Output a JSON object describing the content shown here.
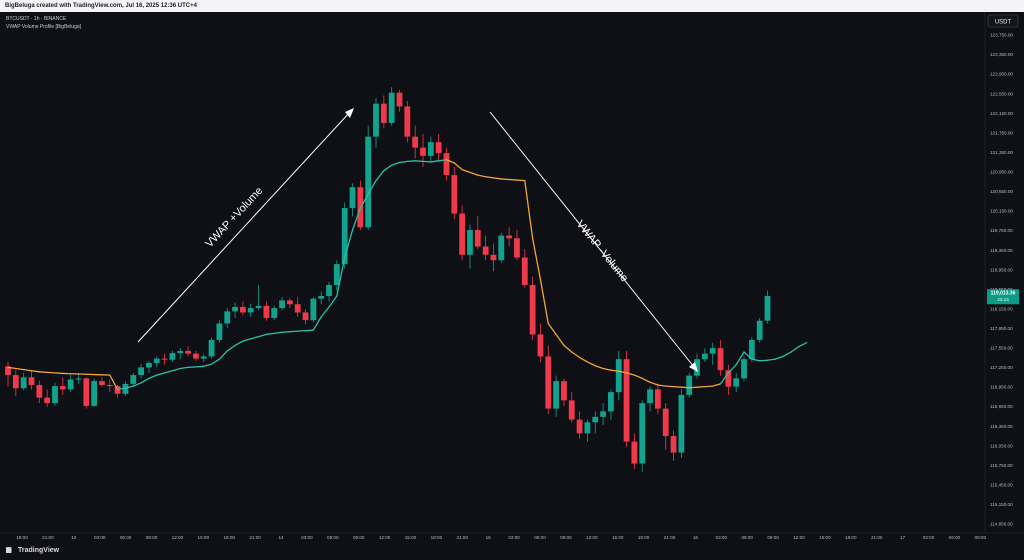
{
  "header": {
    "attribution": "BigBeluga created with TradingView.com, Jul 16, 2025 12:36 UTC+4"
  },
  "legend": {
    "symbol_line": "BTCUSDT · 1h · BINANCE",
    "indicator_line": "VWAP Volume Profile [BigBeluga]"
  },
  "footer": {
    "brand": "TradingView"
  },
  "price_badge": {
    "price": "119,013.36",
    "countdown": "23:24",
    "color": "#0b9c86"
  },
  "currency_button": "USDT",
  "annotations": {
    "up": "VWAP +Volume",
    "down": "VWAP -Volume"
  },
  "colors": {
    "up": "#12a38e",
    "down": "#ee3a4a",
    "vwap_up": "#2bc1a8",
    "vwap_down": "#f0a43b",
    "background": "#0f1016",
    "arrow": "#ffffff"
  },
  "chart_data": {
    "type": "candlestick",
    "symbol": "BTCUSDT",
    "interval": "1h",
    "exchange": "BINANCE",
    "currency": "USDT",
    "last_price": 119013.36,
    "y_ticks": [
      "123,750.00",
      "123,350.00",
      "122,950.00",
      "122,550.00",
      "122,150.00",
      "121,750.00",
      "121,350.00",
      "120,950.00",
      "120,550.00",
      "120,150.00",
      "119,750.00",
      "119,350.00",
      "118,950.00",
      "118,550.00",
      "118,150.00",
      "117,850.00",
      "117,550.00",
      "117,250.00",
      "116,950.00",
      "116,650.00",
      "116,350.00",
      "116,050.00",
      "115,750.00",
      "115,450.00",
      "115,150.00",
      "114,850.00"
    ],
    "x_ticks": [
      "18:00",
      "21:00",
      "13",
      "03:00",
      "06:00",
      "09:00",
      "12:00",
      "15:00",
      "18:00",
      "21:00",
      "14",
      "03:00",
      "06:00",
      "09:00",
      "12:00",
      "15:00",
      "18:00",
      "21:00",
      "15",
      "03:00",
      "06:00",
      "09:00",
      "12:00",
      "15:00",
      "18:00",
      "21:00",
      "16",
      "03:00",
      "06:00",
      "09:00",
      "12:00",
      "15:00",
      "18:00",
      "21:00",
      "17",
      "03:00",
      "06:00",
      "09:00"
    ],
    "candles": [
      [
        117720,
        117800,
        117350,
        117560
      ],
      [
        117560,
        117650,
        117180,
        117320
      ],
      [
        117320,
        117600,
        117280,
        117520
      ],
      [
        117520,
        117640,
        117300,
        117380
      ],
      [
        117380,
        117460,
        117050,
        117150
      ],
      [
        117150,
        117300,
        116980,
        117050
      ],
      [
        117050,
        117420,
        117000,
        117360
      ],
      [
        117360,
        117520,
        117200,
        117300
      ],
      [
        117300,
        117560,
        117250,
        117480
      ],
      [
        117480,
        117580,
        117400,
        117500
      ],
      [
        117500,
        117520,
        116950,
        117000
      ],
      [
        117000,
        117500,
        116980,
        117450
      ],
      [
        117450,
        117520,
        117350,
        117380
      ],
      [
        117380,
        117480,
        117250,
        117360
      ],
      [
        117360,
        117380,
        117150,
        117220
      ],
      [
        117220,
        117450,
        117180,
        117400
      ],
      [
        117400,
        117600,
        117350,
        117560
      ],
      [
        117560,
        117760,
        117500,
        117700
      ],
      [
        117700,
        117820,
        117600,
        117780
      ],
      [
        117780,
        117900,
        117700,
        117860
      ],
      [
        117860,
        117950,
        117750,
        117840
      ],
      [
        117840,
        118000,
        117800,
        117960
      ],
      [
        117960,
        118050,
        117850,
        118000
      ],
      [
        118000,
        118080,
        117900,
        117950
      ],
      [
        117950,
        118000,
        117820,
        117860
      ],
      [
        117860,
        117950,
        117800,
        117900
      ],
      [
        117900,
        118250,
        117860,
        118200
      ],
      [
        118200,
        118560,
        118150,
        118500
      ],
      [
        118500,
        118780,
        118420,
        118720
      ],
      [
        118720,
        118880,
        118600,
        118800
      ],
      [
        118800,
        118900,
        118650,
        118700
      ],
      [
        118700,
        118860,
        118620,
        118780
      ],
      [
        118780,
        119200,
        118740,
        118820
      ],
      [
        118820,
        118900,
        118550,
        118600
      ],
      [
        118600,
        118820,
        118560,
        118780
      ],
      [
        118780,
        118980,
        118740,
        118920
      ],
      [
        118920,
        118960,
        118780,
        118850
      ],
      [
        118850,
        118980,
        118620,
        118700
      ],
      [
        118700,
        118760,
        118480,
        118560
      ],
      [
        118560,
        118980,
        118520,
        118950
      ],
      [
        118950,
        119080,
        118850,
        119000
      ],
      [
        119000,
        119260,
        118900,
        119200
      ],
      [
        119200,
        119650,
        119100,
        119580
      ],
      [
        119580,
        120700,
        119500,
        120600
      ],
      [
        120600,
        121050,
        120450,
        120980
      ],
      [
        120980,
        121100,
        120200,
        120250
      ],
      [
        120250,
        122100,
        120200,
        121900
      ],
      [
        121900,
        122600,
        121700,
        122500
      ],
      [
        122500,
        122650,
        122050,
        122150
      ],
      [
        122150,
        122800,
        122100,
        122700
      ],
      [
        122700,
        122750,
        122350,
        122450
      ],
      [
        122450,
        122550,
        121800,
        121900
      ],
      [
        121900,
        122100,
        121500,
        121700
      ],
      [
        121700,
        121950,
        121350,
        121550
      ],
      [
        121550,
        121900,
        121450,
        121800
      ],
      [
        121800,
        121950,
        121450,
        121600
      ],
      [
        121600,
        121700,
        121100,
        121200
      ],
      [
        121200,
        121350,
        120400,
        120500
      ],
      [
        120500,
        120650,
        119650,
        119750
      ],
      [
        119750,
        120300,
        119500,
        120200
      ],
      [
        120200,
        120450,
        119850,
        119900
      ],
      [
        119900,
        120100,
        119650,
        119750
      ],
      [
        119750,
        119950,
        119450,
        119650
      ],
      [
        119650,
        120150,
        119600,
        120100
      ],
      [
        120100,
        120250,
        119900,
        120050
      ],
      [
        120050,
        120200,
        119650,
        119700
      ],
      [
        119700,
        119850,
        119150,
        119200
      ],
      [
        119200,
        119350,
        118200,
        118300
      ],
      [
        118300,
        118500,
        117800,
        117900
      ],
      [
        117900,
        118100,
        116850,
        116950
      ],
      [
        116950,
        117550,
        116800,
        117450
      ],
      [
        117450,
        117500,
        117000,
        117100
      ],
      [
        117100,
        117250,
        116700,
        116750
      ],
      [
        116750,
        116900,
        116400,
        116500
      ],
      [
        116500,
        116750,
        116350,
        116700
      ],
      [
        116700,
        116900,
        116500,
        116800
      ],
      [
        116800,
        117050,
        116650,
        116900
      ],
      [
        116900,
        117300,
        116750,
        117250
      ],
      [
        117250,
        118000,
        117100,
        117850
      ],
      [
        117850,
        118000,
        116250,
        116350
      ],
      [
        116350,
        116500,
        115850,
        115950
      ],
      [
        115950,
        117100,
        115800,
        117050
      ],
      [
        117050,
        117350,
        116900,
        117300
      ],
      [
        117300,
        117400,
        116850,
        116950
      ],
      [
        116950,
        117050,
        116200,
        116450
      ],
      [
        116450,
        116550,
        116000,
        116150
      ],
      [
        116150,
        117300,
        116050,
        117200
      ],
      [
        117200,
        117600,
        117150,
        117550
      ],
      [
        117550,
        117950,
        117500,
        117850
      ],
      [
        117850,
        118050,
        117800,
        117950
      ],
      [
        117950,
        118150,
        117750,
        118050
      ],
      [
        118050,
        118200,
        117550,
        117650
      ],
      [
        117650,
        117750,
        117200,
        117350
      ],
      [
        117350,
        117600,
        117250,
        117500
      ],
      [
        117500,
        117900,
        117450,
        117850
      ],
      [
        117850,
        118250,
        117800,
        118200
      ],
      [
        118200,
        118600,
        118150,
        118550
      ],
      [
        118550,
        119100,
        118500,
        119000
      ]
    ],
    "vwap": [
      [
        117700,
        "down"
      ],
      [
        117680,
        "down"
      ],
      [
        117660,
        "down"
      ],
      [
        117640,
        "down"
      ],
      [
        117620,
        "down"
      ],
      [
        117610,
        "down"
      ],
      [
        117600,
        "down"
      ],
      [
        117590,
        "down"
      ],
      [
        117585,
        "down"
      ],
      [
        117580,
        "down"
      ],
      [
        117575,
        "down"
      ],
      [
        117570,
        "down"
      ],
      [
        117565,
        "down"
      ],
      [
        117560,
        "down"
      ],
      [
        117300,
        "down"
      ],
      [
        117320,
        "up"
      ],
      [
        117360,
        "up"
      ],
      [
        117420,
        "up"
      ],
      [
        117500,
        "up"
      ],
      [
        117560,
        "up"
      ],
      [
        117600,
        "up"
      ],
      [
        117640,
        "up"
      ],
      [
        117680,
        "up"
      ],
      [
        117700,
        "up"
      ],
      [
        117710,
        "up"
      ],
      [
        117720,
        "up"
      ],
      [
        117760,
        "up"
      ],
      [
        117850,
        "up"
      ],
      [
        118000,
        "up"
      ],
      [
        118100,
        "up"
      ],
      [
        118180,
        "up"
      ],
      [
        118220,
        "up"
      ],
      [
        118260,
        "up"
      ],
      [
        118300,
        "up"
      ],
      [
        118320,
        "up"
      ],
      [
        118340,
        "up"
      ],
      [
        118350,
        "up"
      ],
      [
        118360,
        "up"
      ],
      [
        118370,
        "up"
      ],
      [
        118380,
        "up"
      ],
      [
        118620,
        "up"
      ],
      [
        118800,
        "up"
      ],
      [
        119000,
        "up"
      ],
      [
        119700,
        "up"
      ],
      [
        120200,
        "up"
      ],
      [
        120600,
        "up"
      ],
      [
        120850,
        "up"
      ],
      [
        121100,
        "up"
      ],
      [
        121280,
        "up"
      ],
      [
        121380,
        "up"
      ],
      [
        121430,
        "up"
      ],
      [
        121450,
        "up"
      ],
      [
        121460,
        "up"
      ],
      [
        121450,
        "up"
      ],
      [
        121440,
        "up"
      ],
      [
        121460,
        "up"
      ],
      [
        121480,
        "up"
      ],
      [
        121420,
        "down"
      ],
      [
        121300,
        "down"
      ],
      [
        121250,
        "down"
      ],
      [
        121200,
        "down"
      ],
      [
        121170,
        "down"
      ],
      [
        121150,
        "down"
      ],
      [
        121130,
        "down"
      ],
      [
        121120,
        "down"
      ],
      [
        121110,
        "down"
      ],
      [
        121100,
        "down"
      ],
      [
        120050,
        "down"
      ],
      [
        119300,
        "down"
      ],
      [
        118500,
        "down"
      ],
      [
        118300,
        "down"
      ],
      [
        118100,
        "down"
      ],
      [
        117980,
        "down"
      ],
      [
        117880,
        "down"
      ],
      [
        117800,
        "down"
      ],
      [
        117730,
        "down"
      ],
      [
        117680,
        "down"
      ],
      [
        117650,
        "down"
      ],
      [
        117630,
        "down"
      ],
      [
        117600,
        "down"
      ],
      [
        117560,
        "down"
      ],
      [
        117500,
        "down"
      ],
      [
        117430,
        "down"
      ],
      [
        117380,
        "down"
      ],
      [
        117360,
        "down"
      ],
      [
        117350,
        "down"
      ],
      [
        117340,
        "down"
      ],
      [
        117330,
        "down"
      ],
      [
        117340,
        "down"
      ],
      [
        117350,
        "down"
      ],
      [
        117360,
        "down"
      ],
      [
        117400,
        "down"
      ],
      [
        117600,
        "up"
      ],
      [
        117750,
        "up"
      ],
      [
        117980,
        "up"
      ],
      [
        117850,
        "up"
      ],
      [
        117820,
        "up"
      ],
      [
        117830,
        "up"
      ],
      [
        117850,
        "up"
      ],
      [
        117900,
        "up"
      ],
      [
        117980,
        "up"
      ],
      [
        118080,
        "up"
      ],
      [
        118150,
        "up"
      ]
    ]
  }
}
